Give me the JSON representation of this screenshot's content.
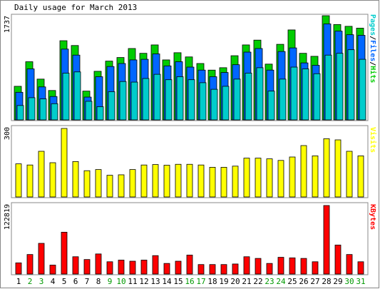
{
  "title": "Daily usage for March 2013",
  "colors": {
    "background": "#ffffff",
    "frame": "#888888",
    "hits": "#00cc00",
    "files": "#0066ff",
    "pages": "#00cccc",
    "visits": "#ffff00",
    "kbytes": "#ff0000",
    "weekday": "#000000",
    "weekend": "#009900"
  },
  "panels": {
    "top": {
      "max_label": "1737",
      "legend": [
        "Pages",
        "/",
        "Files",
        "/",
        "Hits"
      ]
    },
    "middle": {
      "max_label": "300",
      "legend": [
        "Visits"
      ]
    },
    "bottom": {
      "max_label": "122819",
      "legend": [
        "KBytes"
      ]
    }
  },
  "chart_data": {
    "type": "bar",
    "title": "Daily usage for March 2013",
    "categories": [
      "1",
      "2",
      "3",
      "4",
      "5",
      "6",
      "7",
      "8",
      "9",
      "10",
      "11",
      "12",
      "13",
      "14",
      "15",
      "16",
      "17",
      "18",
      "19",
      "20",
      "21",
      "22",
      "23",
      "24",
      "25",
      "26",
      "27",
      "28",
      "29",
      "30",
      "31"
    ],
    "weekend_days": [
      "2",
      "3",
      "9",
      "10",
      "16",
      "17",
      "23",
      "24",
      "30",
      "31"
    ],
    "charts": [
      {
        "name": "hits-files-pages",
        "ymax": 1737,
        "series": [
          {
            "name": "Hits",
            "values": [
              560,
              970,
              680,
              490,
              1320,
              1240,
              480,
              810,
              980,
              1040,
              1190,
              1110,
              1250,
              1000,
              1120,
              1050,
              940,
              830,
              870,
              1070,
              1250,
              1330,
              930,
              1260,
              1500,
              1110,
              1060,
              1737,
              1590,
              1560,
              1530
            ]
          },
          {
            "name": "Files",
            "values": [
              460,
              850,
              550,
              390,
              1180,
              1080,
              380,
              720,
              890,
              940,
              1000,
              1010,
              1100,
              900,
              970,
              880,
              830,
              720,
              790,
              920,
              1130,
              1190,
              830,
              1140,
              1200,
              950,
              910,
              1600,
              1480,
              1420,
              1410
            ]
          },
          {
            "name": "Pages",
            "values": [
              240,
              370,
              350,
              270,
              780,
              800,
              310,
              220,
              470,
              640,
              630,
              690,
              760,
              670,
              720,
              670,
              620,
              510,
              560,
              680,
              780,
              870,
              480,
              680,
              880,
              850,
              770,
              1080,
              1110,
              1170,
              1010
            ]
          }
        ]
      },
      {
        "name": "visits",
        "ymax": 300,
        "series": [
          {
            "name": "Visits",
            "values": [
              145,
              140,
              200,
              150,
              300,
              155,
              115,
              120,
              95,
              97,
              120,
              140,
              142,
              139,
              143,
              143,
              140,
              130,
              130,
              135,
              170,
              170,
              167,
              160,
              175,
              225,
              180,
              255,
              250,
              200,
              180
            ]
          }
        ]
      },
      {
        "name": "kbytes",
        "ymax": 122819,
        "series": [
          {
            "name": "KBytes",
            "values": [
              20000,
              35000,
              55000,
              16000,
              75000,
              31000,
              26000,
              36000,
              22000,
              25000,
              23000,
              25000,
              33000,
              19000,
              23000,
              34000,
              17000,
              17000,
              17000,
              18000,
              31000,
              28000,
              19000,
              30000,
              29000,
              28000,
              22000,
              122819,
              52000,
              35000,
              22000
            ]
          }
        ]
      }
    ]
  }
}
